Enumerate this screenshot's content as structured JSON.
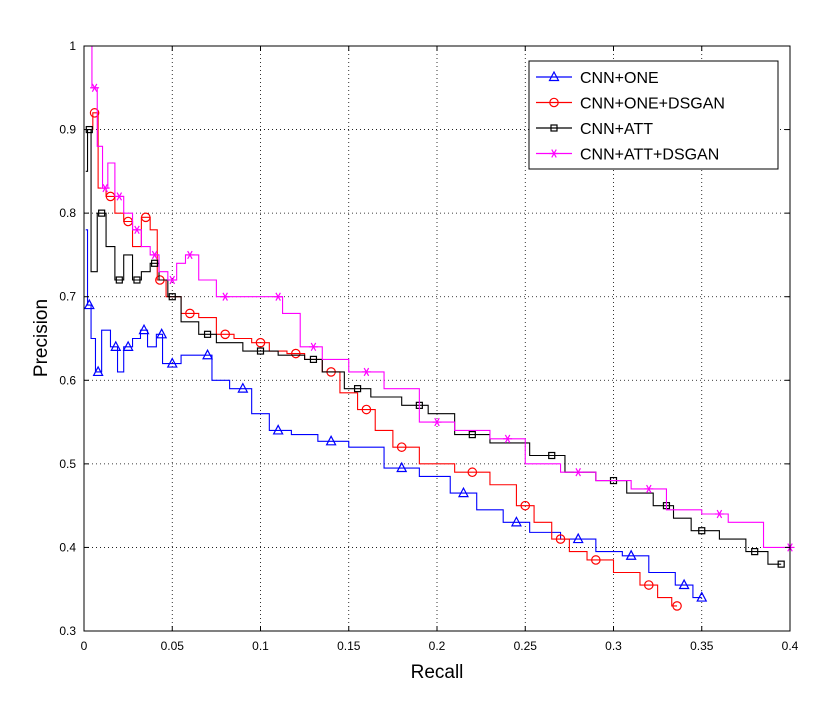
{
  "chart_data": {
    "type": "line",
    "title": "",
    "xlabel": "Recall",
    "ylabel": "Precision",
    "xlim": [
      0,
      0.4
    ],
    "ylim": [
      0.3,
      1
    ],
    "xticks": [
      0,
      0.05,
      0.1,
      0.15,
      0.2,
      0.25,
      0.3,
      0.35,
      0.4
    ],
    "xtick_labels": [
      "0",
      "0.05",
      "0.1",
      "0.15",
      "0.2",
      "0.25",
      "0.3",
      "0.35",
      "0.4"
    ],
    "yticks": [
      0.3,
      0.4,
      0.5,
      0.6,
      0.7,
      0.8,
      0.9,
      1
    ],
    "ytick_labels": [
      "0.3",
      "0.4",
      "0.5",
      "0.6",
      "0.7",
      "0.8",
      "0.9",
      "1"
    ],
    "grid": true,
    "grid_style": "dotted",
    "legend_position": "top-right",
    "series": [
      {
        "name": "CNN+ONE",
        "color": "#0000ff",
        "marker": "triangle",
        "points": [
          [
            0.001,
            0.78
          ],
          [
            0.003,
            0.69
          ],
          [
            0.005,
            0.65
          ],
          [
            0.008,
            0.61
          ],
          [
            0.012,
            0.66
          ],
          [
            0.018,
            0.64
          ],
          [
            0.02,
            0.61
          ],
          [
            0.025,
            0.64
          ],
          [
            0.03,
            0.65
          ],
          [
            0.034,
            0.66
          ],
          [
            0.038,
            0.64
          ],
          [
            0.044,
            0.655
          ],
          [
            0.045,
            0.62
          ],
          [
            0.05,
            0.62
          ],
          [
            0.06,
            0.63
          ],
          [
            0.07,
            0.63
          ],
          [
            0.075,
            0.6
          ],
          [
            0.09,
            0.59
          ],
          [
            0.1,
            0.56
          ],
          [
            0.11,
            0.54
          ],
          [
            0.125,
            0.535
          ],
          [
            0.14,
            0.527
          ],
          [
            0.16,
            0.52
          ],
          [
            0.18,
            0.495
          ],
          [
            0.2,
            0.485
          ],
          [
            0.215,
            0.465
          ],
          [
            0.23,
            0.445
          ],
          [
            0.245,
            0.43
          ],
          [
            0.26,
            0.418
          ],
          [
            0.28,
            0.41
          ],
          [
            0.3,
            0.395
          ],
          [
            0.31,
            0.39
          ],
          [
            0.33,
            0.37
          ],
          [
            0.34,
            0.355
          ],
          [
            0.35,
            0.34
          ]
        ]
      },
      {
        "name": "CNN+ONE+DSGAN",
        "color": "#ff0000",
        "marker": "circle",
        "points": [
          [
            0.004,
            0.9
          ],
          [
            0.006,
            0.92
          ],
          [
            0.01,
            0.83
          ],
          [
            0.015,
            0.82
          ],
          [
            0.02,
            0.8
          ],
          [
            0.025,
            0.79
          ],
          [
            0.03,
            0.76
          ],
          [
            0.035,
            0.795
          ],
          [
            0.04,
            0.78
          ],
          [
            0.043,
            0.72
          ],
          [
            0.05,
            0.7
          ],
          [
            0.06,
            0.68
          ],
          [
            0.07,
            0.675
          ],
          [
            0.08,
            0.655
          ],
          [
            0.09,
            0.65
          ],
          [
            0.1,
            0.645
          ],
          [
            0.11,
            0.635
          ],
          [
            0.12,
            0.632
          ],
          [
            0.13,
            0.625
          ],
          [
            0.14,
            0.61
          ],
          [
            0.15,
            0.585
          ],
          [
            0.16,
            0.565
          ],
          [
            0.17,
            0.54
          ],
          [
            0.18,
            0.52
          ],
          [
            0.2,
            0.5
          ],
          [
            0.22,
            0.49
          ],
          [
            0.24,
            0.475
          ],
          [
            0.25,
            0.45
          ],
          [
            0.26,
            0.43
          ],
          [
            0.27,
            0.41
          ],
          [
            0.28,
            0.395
          ],
          [
            0.29,
            0.385
          ],
          [
            0.31,
            0.37
          ],
          [
            0.32,
            0.355
          ],
          [
            0.33,
            0.34
          ],
          [
            0.336,
            0.33
          ]
        ]
      },
      {
        "name": "CNN+ATT",
        "color": "#000000",
        "marker": "square",
        "points": [
          [
            0.001,
            0.85
          ],
          [
            0.003,
            0.9
          ],
          [
            0.005,
            0.73
          ],
          [
            0.01,
            0.8
          ],
          [
            0.015,
            0.76
          ],
          [
            0.02,
            0.72
          ],
          [
            0.025,
            0.75
          ],
          [
            0.03,
            0.72
          ],
          [
            0.035,
            0.73
          ],
          [
            0.04,
            0.74
          ],
          [
            0.045,
            0.72
          ],
          [
            0.05,
            0.7
          ],
          [
            0.06,
            0.67
          ],
          [
            0.07,
            0.655
          ],
          [
            0.08,
            0.645
          ],
          [
            0.1,
            0.635
          ],
          [
            0.12,
            0.63
          ],
          [
            0.13,
            0.625
          ],
          [
            0.14,
            0.61
          ],
          [
            0.155,
            0.59
          ],
          [
            0.17,
            0.58
          ],
          [
            0.19,
            0.57
          ],
          [
            0.2,
            0.56
          ],
          [
            0.22,
            0.535
          ],
          [
            0.24,
            0.525
          ],
          [
            0.265,
            0.51
          ],
          [
            0.28,
            0.49
          ],
          [
            0.3,
            0.48
          ],
          [
            0.315,
            0.465
          ],
          [
            0.33,
            0.45
          ],
          [
            0.338,
            0.435
          ],
          [
            0.35,
            0.42
          ],
          [
            0.37,
            0.41
          ],
          [
            0.38,
            0.395
          ],
          [
            0.395,
            0.38
          ]
        ]
      },
      {
        "name": "CNN+ATT+DSGAN",
        "color": "#ff00ff",
        "marker": "asterisk",
        "points": [
          [
            0.003,
            1.0
          ],
          [
            0.006,
            0.95
          ],
          [
            0.009,
            0.88
          ],
          [
            0.012,
            0.83
          ],
          [
            0.015,
            0.86
          ],
          [
            0.02,
            0.82
          ],
          [
            0.025,
            0.8
          ],
          [
            0.03,
            0.78
          ],
          [
            0.035,
            0.76
          ],
          [
            0.04,
            0.75
          ],
          [
            0.045,
            0.73
          ],
          [
            0.05,
            0.72
          ],
          [
            0.055,
            0.74
          ],
          [
            0.06,
            0.75
          ],
          [
            0.07,
            0.72
          ],
          [
            0.08,
            0.7
          ],
          [
            0.095,
            0.7
          ],
          [
            0.11,
            0.7
          ],
          [
            0.115,
            0.68
          ],
          [
            0.13,
            0.64
          ],
          [
            0.14,
            0.625
          ],
          [
            0.16,
            0.61
          ],
          [
            0.18,
            0.59
          ],
          [
            0.2,
            0.55
          ],
          [
            0.22,
            0.54
          ],
          [
            0.24,
            0.53
          ],
          [
            0.26,
            0.5
          ],
          [
            0.28,
            0.49
          ],
          [
            0.3,
            0.48
          ],
          [
            0.32,
            0.47
          ],
          [
            0.34,
            0.445
          ],
          [
            0.36,
            0.44
          ],
          [
            0.37,
            0.43
          ],
          [
            0.4,
            0.4
          ]
        ]
      }
    ]
  }
}
